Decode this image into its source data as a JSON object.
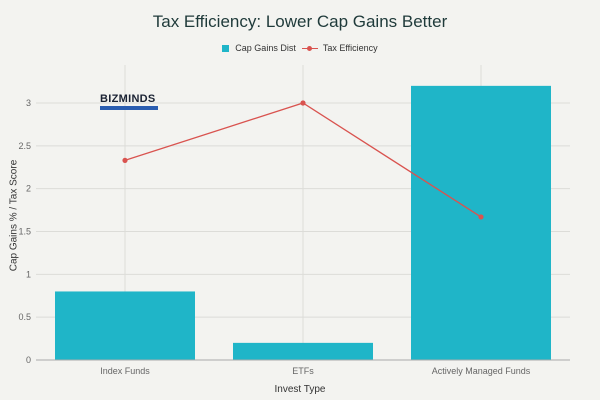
{
  "chart_data": {
    "type": "bar",
    "title": "Tax Efficiency: Lower Cap Gains Better",
    "xlabel": "Invest Type",
    "ylabel": "Cap Gains % / Tax Score",
    "categories": [
      "Index Funds",
      "ETFs",
      "Actively Managed Funds"
    ],
    "series": [
      {
        "name": "Cap Gains Dist",
        "type": "bar",
        "color": "#1fb5c8",
        "values": [
          0.8,
          0.2,
          3.2
        ]
      },
      {
        "name": "Tax Efficiency",
        "type": "line",
        "color": "#d9534f",
        "values": [
          2.33,
          3.0,
          1.67
        ]
      }
    ],
    "ylim": [
      0,
      3.3
    ],
    "yticks": [
      0,
      0.5,
      1,
      1.5,
      2,
      2.5,
      3
    ],
    "ytick_labels": [
      "0",
      "0.5",
      "1",
      "1.5",
      "2",
      "2.5",
      "3"
    ],
    "grid": true,
    "legend_position": "top"
  },
  "logo": {
    "text": "BIZMINDS"
  }
}
